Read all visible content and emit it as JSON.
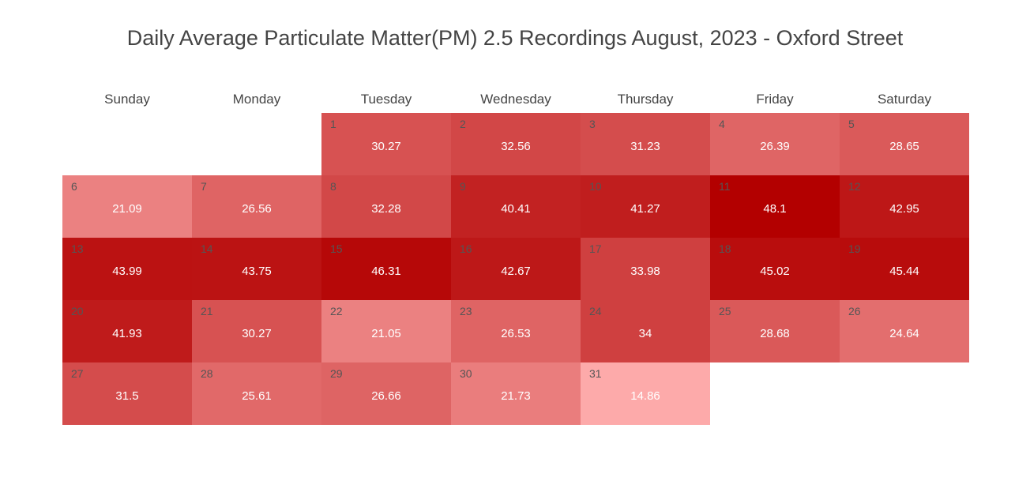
{
  "chart_data": {
    "type": "heatmap",
    "title": "Daily Average Particulate Matter(PM) 2.5 Recordings August, 2023 - Oxford Street",
    "weekdays": [
      "Sunday",
      "Monday",
      "Tuesday",
      "Wednesday",
      "Thursday",
      "Friday",
      "Saturday"
    ],
    "first_weekday_index": 2,
    "days": [
      {
        "day": 1,
        "value": 30.27
      },
      {
        "day": 2,
        "value": 32.56
      },
      {
        "day": 3,
        "value": 31.23
      },
      {
        "day": 4,
        "value": 26.39
      },
      {
        "day": 5,
        "value": 28.65
      },
      {
        "day": 6,
        "value": 21.09
      },
      {
        "day": 7,
        "value": 26.56
      },
      {
        "day": 8,
        "value": 32.28
      },
      {
        "day": 9,
        "value": 40.41
      },
      {
        "day": 10,
        "value": 41.27
      },
      {
        "day": 11,
        "value": 48.1
      },
      {
        "day": 12,
        "value": 42.95
      },
      {
        "day": 13,
        "value": 43.99
      },
      {
        "day": 14,
        "value": 43.75
      },
      {
        "day": 15,
        "value": 46.31
      },
      {
        "day": 16,
        "value": 42.67
      },
      {
        "day": 17,
        "value": 33.98
      },
      {
        "day": 18,
        "value": 45.02
      },
      {
        "day": 19,
        "value": 45.44
      },
      {
        "day": 20,
        "value": 41.93
      },
      {
        "day": 21,
        "value": 30.27
      },
      {
        "day": 22,
        "value": 21.05
      },
      {
        "day": 23,
        "value": 26.53
      },
      {
        "day": 24,
        "value": 34
      },
      {
        "day": 25,
        "value": 28.68
      },
      {
        "day": 26,
        "value": 24.64
      },
      {
        "day": 27,
        "value": 31.5
      },
      {
        "day": 28,
        "value": 25.61
      },
      {
        "day": 29,
        "value": 26.66
      },
      {
        "day": 30,
        "value": 21.73
      },
      {
        "day": 31,
        "value": 14.86
      }
    ],
    "color_scale": {
      "low": "#fdaaaa",
      "high": "#b30000"
    }
  }
}
